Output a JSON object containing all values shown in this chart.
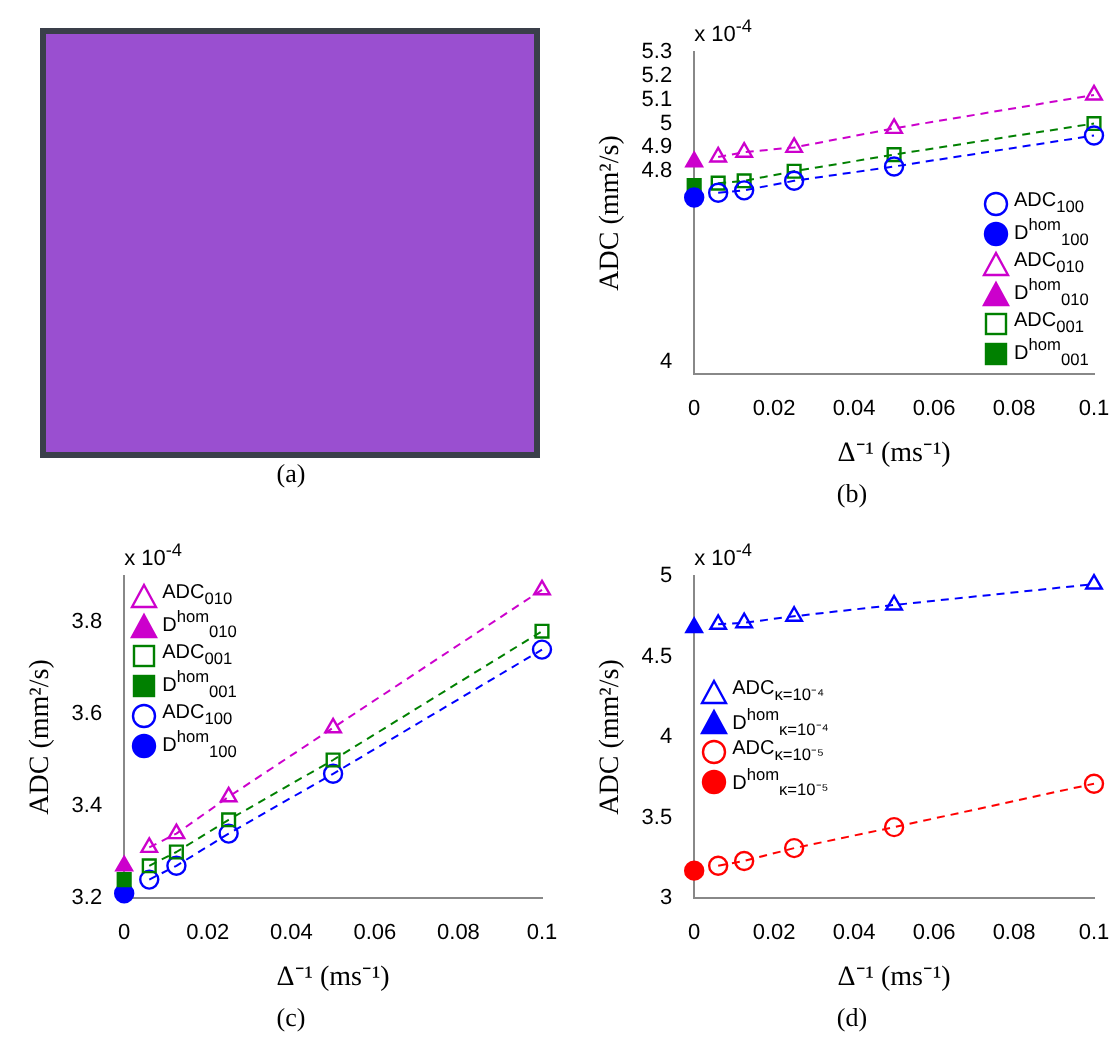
{
  "chart_data": [
    {
      "type": "other",
      "annotations": [
        "(a)"
      ]
    },
    {
      "type": "scatter",
      "xlabel": "Δ⁻¹ (ms⁻¹)",
      "ylabel": "ADC (mm²/s)",
      "xlim": [
        0,
        0.1
      ],
      "xticks": [
        0,
        0.02,
        0.04,
        0.06,
        0.08,
        0.1
      ],
      "ylim": [
        3.95,
        5.3
      ],
      "yticks": [
        4,
        4.8,
        4.9,
        5,
        5.1,
        5.2,
        5.3
      ],
      "legend": "bottom right",
      "line_style": "dashed",
      "annotations": [
        "x 10$^{-4}$",
        "(b)"
      ],
      "series": [
        {
          "name": "ADC$_{100}$",
          "color": "#0000ff",
          "type": "line",
          "marker": "circle",
          "x": [
            0.006,
            0.0125,
            0.025,
            0.05,
            0.1
          ],
          "values": [
            4.71,
            4.72,
            4.76,
            4.82,
            4.95
          ]
        },
        {
          "name": "D$^{hom}$$_{100}$",
          "color": "#0000ff",
          "type": "scatter",
          "marker": "circle",
          "x": [
            0
          ],
          "values": [
            4.69
          ]
        },
        {
          "name": "ADC$_{010}$",
          "color": "#cc00cc",
          "type": "line",
          "marker": "triangle",
          "x": [
            0.006,
            0.0125,
            0.025,
            0.05,
            0.1
          ],
          "values": [
            4.86,
            4.88,
            4.9,
            4.98,
            5.12
          ]
        },
        {
          "name": "D$^{hom}$$_{010}$",
          "color": "#cc00cc",
          "type": "scatter",
          "marker": "triangle",
          "x": [
            0
          ],
          "values": [
            4.84
          ]
        },
        {
          "name": "ADC$_{001}$",
          "color": "#008000",
          "type": "line",
          "marker": "square",
          "x": [
            0.006,
            0.0125,
            0.025,
            0.05,
            0.1
          ],
          "values": [
            4.75,
            4.76,
            4.8,
            4.87,
            5.0
          ]
        },
        {
          "name": "D$^{hom}$$_{001}$",
          "color": "#008000",
          "type": "scatter",
          "marker": "square",
          "x": [
            0
          ],
          "values": [
            4.74
          ]
        }
      ]
    },
    {
      "type": "scatter",
      "xlabel": "Δ⁻¹ (ms⁻¹)",
      "ylabel": "ADC (mm²/s)",
      "xlim": [
        0,
        0.1
      ],
      "xticks": [
        0,
        0.02,
        0.04,
        0.06,
        0.08,
        0.1
      ],
      "ylim": [
        3.2,
        3.9
      ],
      "yticks": [
        3.2,
        3.4,
        3.6,
        3.8
      ],
      "legend": "top left",
      "line_style": "dashed",
      "annotations": [
        "x 10$^{-4}$",
        "(c)"
      ],
      "series": [
        {
          "name": "ADC$_{010}$",
          "color": "#cc00cc",
          "type": "line",
          "marker": "triangle",
          "x": [
            0.006,
            0.0125,
            0.025,
            0.05,
            0.1
          ],
          "values": [
            3.31,
            3.34,
            3.42,
            3.57,
            3.87
          ]
        },
        {
          "name": "D$^{hom}$$_{010}$",
          "color": "#cc00cc",
          "type": "scatter",
          "marker": "triangle",
          "x": [
            0
          ],
          "values": [
            3.27
          ]
        },
        {
          "name": "ADC$_{001}$",
          "color": "#008000",
          "type": "line",
          "marker": "square",
          "x": [
            0.006,
            0.0125,
            0.025,
            0.05,
            0.1
          ],
          "values": [
            3.27,
            3.3,
            3.37,
            3.5,
            3.78
          ]
        },
        {
          "name": "D$^{hom}$$_{001}$",
          "color": "#008000",
          "type": "scatter",
          "marker": "square",
          "x": [
            0
          ],
          "values": [
            3.24
          ]
        },
        {
          "name": "ADC$_{100}$",
          "color": "#0000ff",
          "type": "line",
          "marker": "circle",
          "x": [
            0.006,
            0.0125,
            0.025,
            0.05,
            0.1
          ],
          "values": [
            3.24,
            3.27,
            3.34,
            3.47,
            3.74
          ]
        },
        {
          "name": "D$^{hom}$$_{100}$",
          "color": "#0000ff",
          "type": "scatter",
          "marker": "circle",
          "x": [
            0
          ],
          "values": [
            3.21
          ]
        }
      ]
    },
    {
      "type": "scatter",
      "xlabel": "Δ⁻¹ (ms⁻¹)",
      "ylabel": "ADC (mm²/s)",
      "xlim": [
        0,
        0.1
      ],
      "xticks": [
        0,
        0.02,
        0.04,
        0.06,
        0.08,
        0.1
      ],
      "ylim": [
        3,
        5
      ],
      "yticks": [
        3,
        3.5,
        4,
        4.5,
        5
      ],
      "legend": "left",
      "line_style": "dashed",
      "annotations": [
        "x 10$^{-4}$",
        "(d)"
      ],
      "series": [
        {
          "name": "ADC$_{κ=10⁻⁴}$",
          "color": "#0000ff",
          "type": "line",
          "marker": "triangle",
          "x": [
            0.006,
            0.0125,
            0.025,
            0.05,
            0.1
          ],
          "values": [
            4.7,
            4.71,
            4.75,
            4.82,
            4.95
          ]
        },
        {
          "name": "D$^{hom}$$_{κ=10⁻⁴}$",
          "color": "#0000ff",
          "type": "scatter",
          "marker": "triangle",
          "x": [
            0
          ],
          "values": [
            4.68
          ]
        },
        {
          "name": "ADC$_{κ=10⁻⁵}$",
          "color": "#ff0000",
          "type": "line",
          "marker": "circle",
          "x": [
            0.006,
            0.0125,
            0.025,
            0.05,
            0.1
          ],
          "values": [
            3.2,
            3.23,
            3.31,
            3.44,
            3.71
          ]
        },
        {
          "name": "D$^{hom}$$_{κ=10⁻⁵}$",
          "color": "#ff0000",
          "type": "scatter",
          "marker": "circle",
          "x": [
            0
          ],
          "values": [
            3.17
          ]
        }
      ]
    }
  ]
}
